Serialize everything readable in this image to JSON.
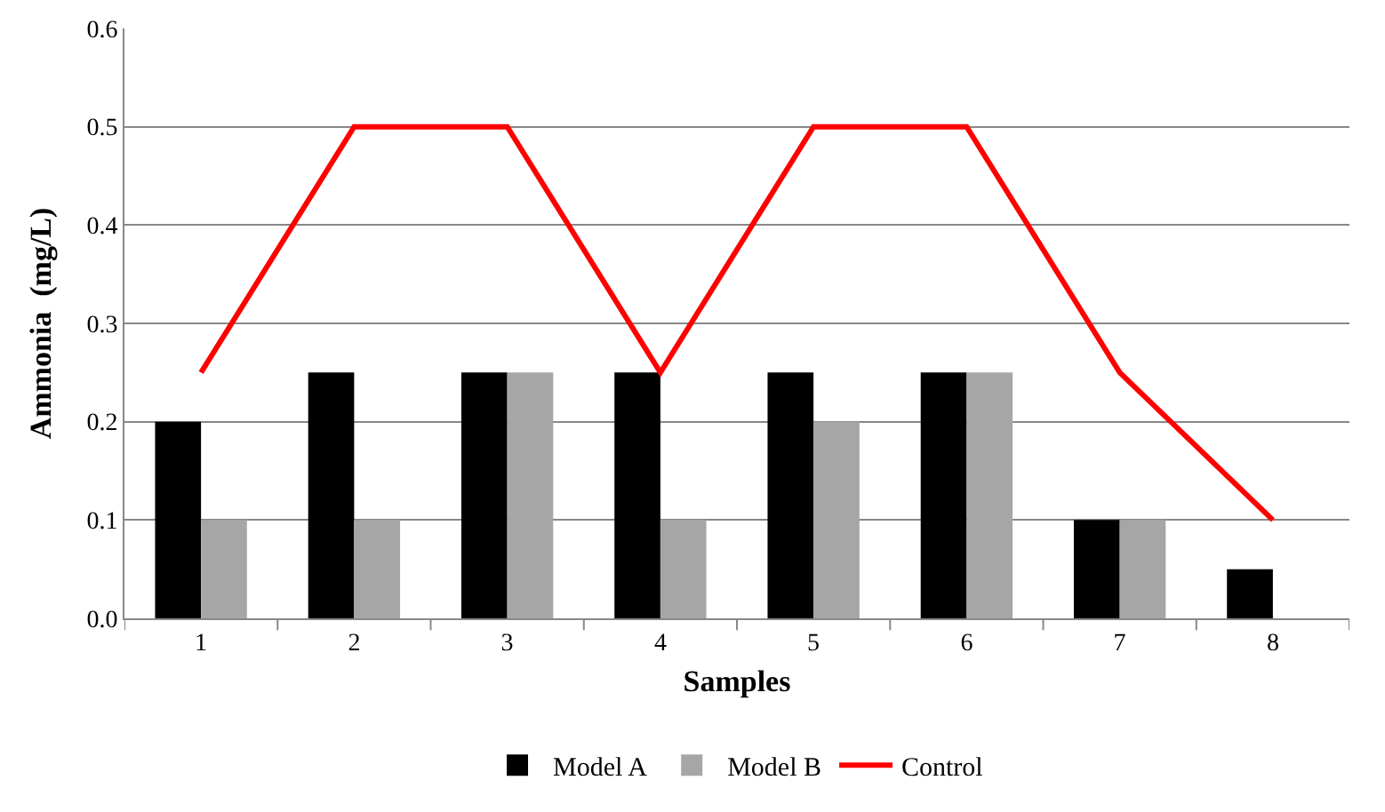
{
  "chart_data": {
    "type": "bar",
    "xlabel": "Samples",
    "ylabel": "Ammonia  (mg/L)",
    "categories": [
      "1",
      "2",
      "3",
      "4",
      "5",
      "6",
      "7",
      "8"
    ],
    "series": [
      {
        "name": "Model A",
        "color": "#000000",
        "values": [
          0.2,
          0.25,
          0.25,
          0.25,
          0.25,
          0.25,
          0.1,
          0.05
        ]
      },
      {
        "name": "Model B",
        "color": "#a6a6a6",
        "values": [
          0.1,
          0.1,
          0.25,
          0.1,
          0.2,
          0.25,
          0.1,
          null
        ]
      },
      {
        "name": "Control",
        "type": "line",
        "color": "#ff0000",
        "values": [
          0.25,
          0.5,
          0.5,
          0.25,
          0.5,
          0.5,
          0.25,
          0.1
        ]
      }
    ],
    "ylim": [
      0,
      0.6
    ],
    "yticks": [
      {
        "value": 0,
        "label": "0.0"
      },
      0.1,
      0.2,
      0.3,
      0.4,
      0.5,
      0.6
    ],
    "grid": "y",
    "legend": "bottom"
  }
}
